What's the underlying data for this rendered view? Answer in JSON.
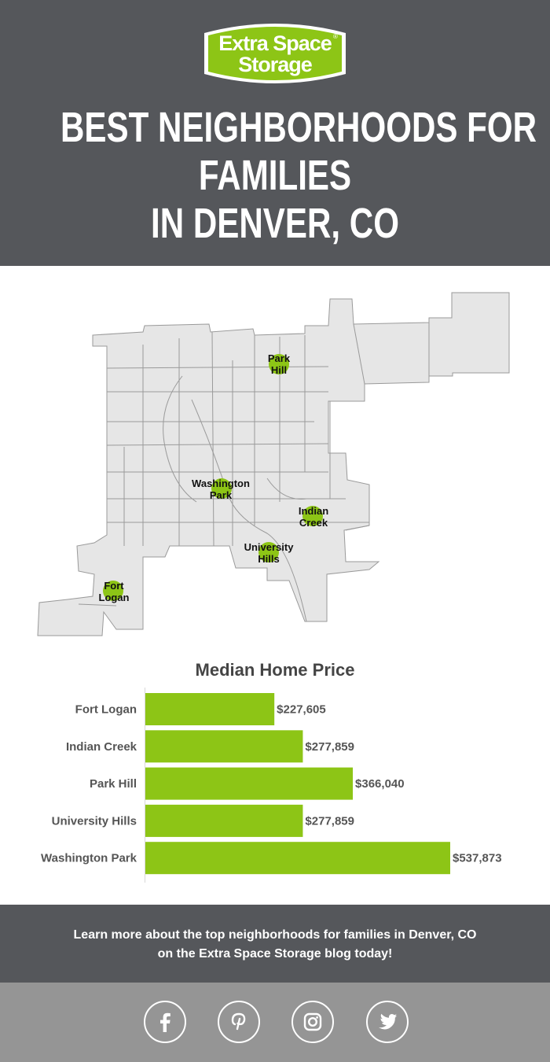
{
  "header": {
    "logo_line1": "Extra Space",
    "logo_line2": "Storage",
    "logo_registered": "®",
    "title_lines": [
      "BEST NEIGHBORHOODS FOR",
      "FAMILIES",
      "IN DENVER, CO"
    ]
  },
  "map": {
    "markers": [
      {
        "line1": "Park",
        "line2": "Hill"
      },
      {
        "line1": "Washington",
        "line2": "Park"
      },
      {
        "line1": "Indian",
        "line2": "Creek"
      },
      {
        "line1": "University",
        "line2": "Hills"
      },
      {
        "line1": "Fort",
        "line2": "Logan"
      }
    ]
  },
  "chart_data": {
    "type": "bar",
    "orientation": "horizontal",
    "title": "Median Home Price",
    "categories": [
      "Fort Logan",
      "Indian Creek",
      "Park Hill",
      "University Hills",
      "Washington Park"
    ],
    "values": [
      227605,
      277859,
      366040,
      277859,
      537873
    ],
    "value_labels": [
      "$227,605",
      "$277,859",
      "$366,040",
      "$277,859",
      "$537,873"
    ],
    "xlim": [
      0,
      537873
    ],
    "bar_color": "#8dc516",
    "grid": false
  },
  "footer": {
    "line1": "Learn more about the top neighborhoods for families in Denver, CO",
    "line2": "on the Extra Space Storage blog today!"
  },
  "social": [
    "facebook-icon",
    "pinterest-icon",
    "instagram-icon",
    "twitter-icon"
  ],
  "colors": {
    "header_bg": "#55575b",
    "accent_green": "#8dc516",
    "social_bg": "#959595"
  }
}
